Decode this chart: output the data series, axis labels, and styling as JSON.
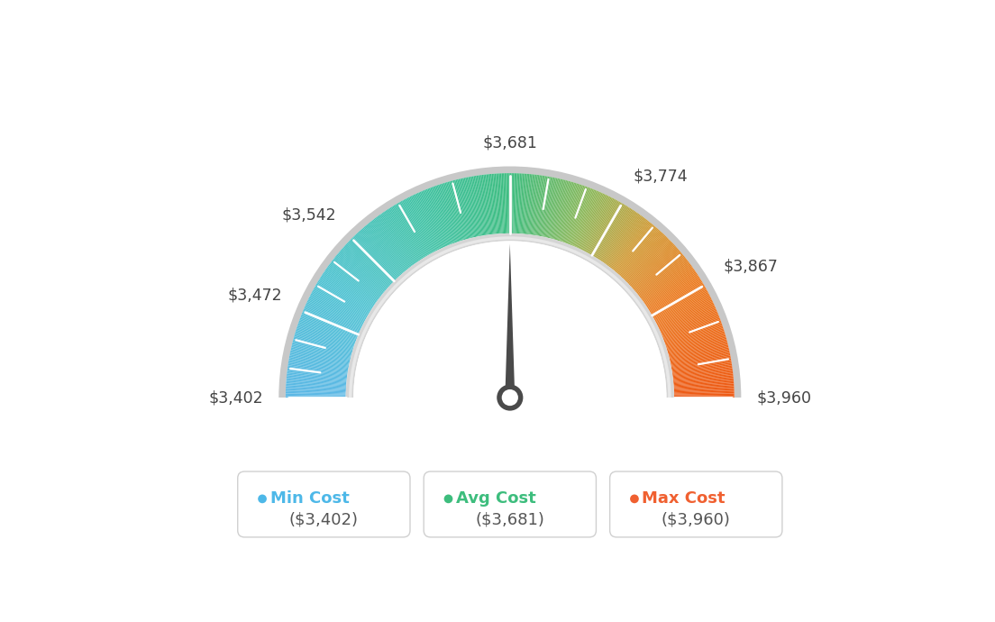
{
  "min_val": 3402,
  "avg_val": 3681,
  "max_val": 3960,
  "tick_labels": [
    "$3,402",
    "$3,472",
    "$3,542",
    "$3,681",
    "$3,774",
    "$3,867",
    "$3,960"
  ],
  "tick_values": [
    3402,
    3472,
    3542,
    3681,
    3774,
    3867,
    3960
  ],
  "legend": [
    {
      "label": "Min Cost",
      "value": "($3,402)",
      "color": "#4db8e8"
    },
    {
      "label": "Avg Cost",
      "value": "($3,681)",
      "color": "#3dbd7d"
    },
    {
      "label": "Max Cost",
      "value": "($3,960)",
      "color": "#f06030"
    }
  ],
  "bg_color": "#ffffff",
  "color_stops": [
    [
      0.0,
      [
        0.36,
        0.72,
        0.9
      ]
    ],
    [
      0.18,
      [
        0.3,
        0.76,
        0.82
      ]
    ],
    [
      0.35,
      [
        0.25,
        0.76,
        0.65
      ]
    ],
    [
      0.5,
      [
        0.24,
        0.74,
        0.5
      ]
    ],
    [
      0.62,
      [
        0.55,
        0.72,
        0.35
      ]
    ],
    [
      0.72,
      [
        0.82,
        0.6,
        0.2
      ]
    ],
    [
      0.82,
      [
        0.92,
        0.48,
        0.12
      ]
    ],
    [
      1.0,
      [
        0.93,
        0.35,
        0.08
      ]
    ]
  ]
}
